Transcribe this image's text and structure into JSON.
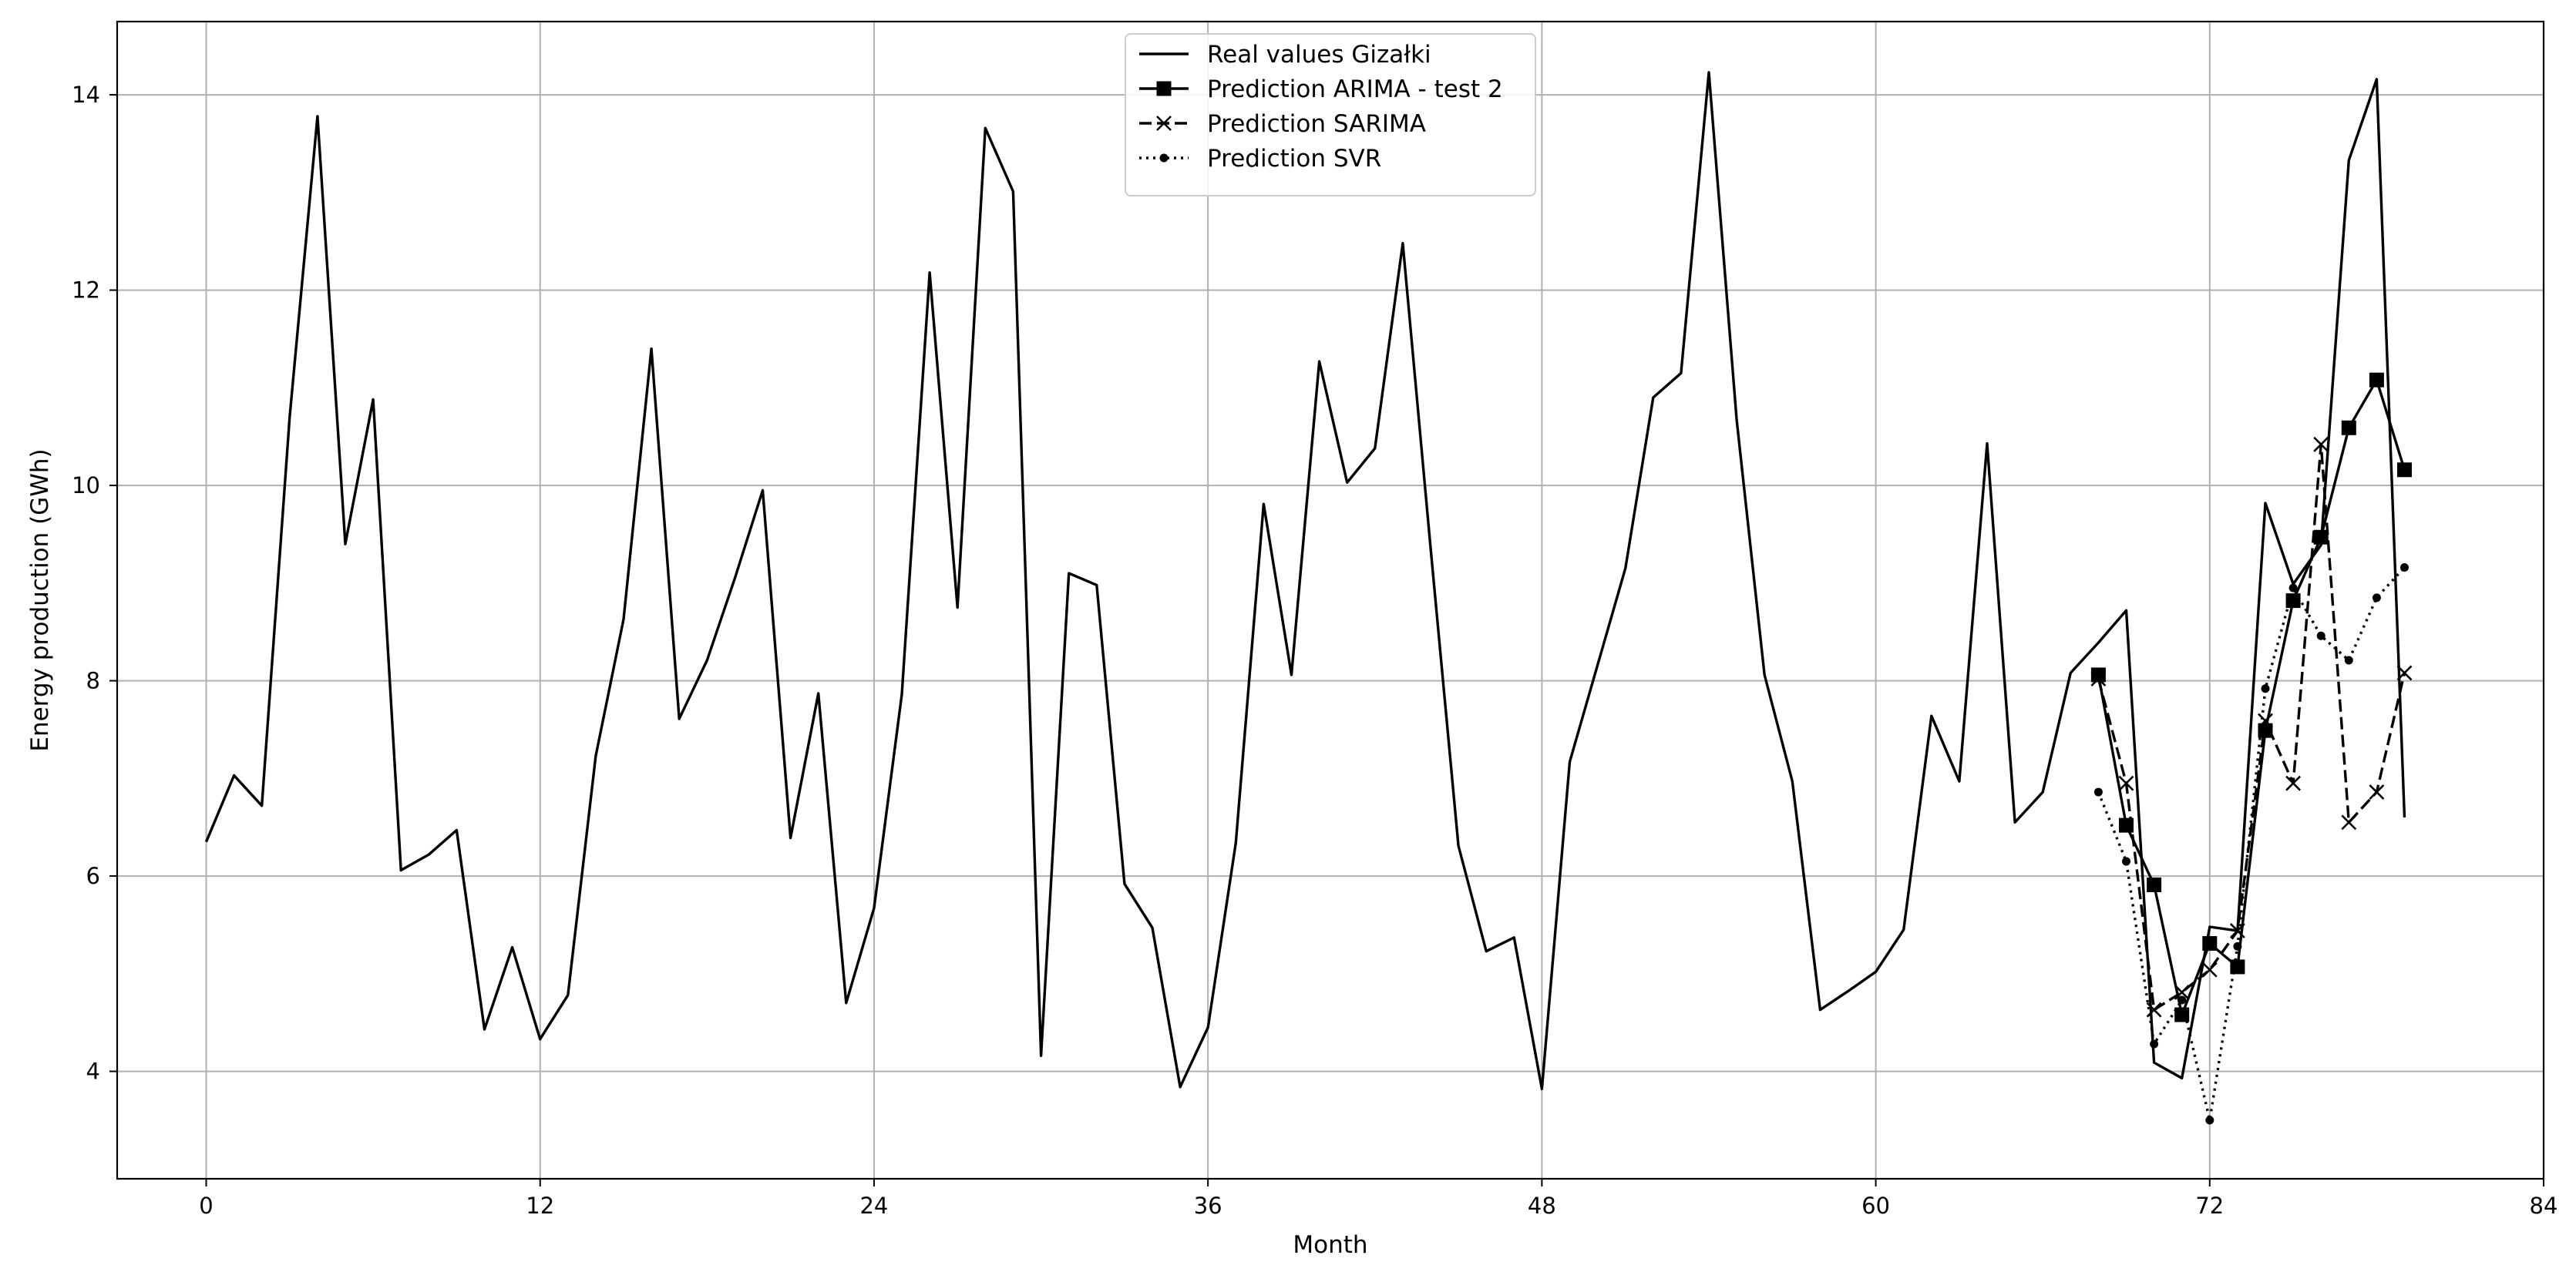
{
  "chart_data": {
    "type": "line",
    "title": "",
    "xlabel": "Month",
    "ylabel": "Energy production (GWh)",
    "xlim": [
      -3.2,
      84
    ],
    "ylim": [
      2.9,
      14.75
    ],
    "x_ticks": [
      0,
      12,
      24,
      36,
      48,
      60,
      72,
      84
    ],
    "y_ticks": [
      4,
      6,
      8,
      10,
      12,
      14
    ],
    "grid": true,
    "legend_position": "top-center",
    "series": [
      {
        "name": "Real values Gizałki",
        "style": "solid",
        "marker": "none",
        "color": "#000000",
        "x": [
          0,
          1,
          2,
          3,
          4,
          5,
          6,
          7,
          8,
          9,
          10,
          11,
          12,
          13,
          14,
          15,
          16,
          17,
          18,
          19,
          20,
          21,
          22,
          23,
          24,
          25,
          26,
          27,
          28,
          29,
          30,
          31,
          32,
          33,
          34,
          35,
          36,
          37,
          38,
          39,
          40,
          41,
          42,
          43,
          44,
          45,
          46,
          47,
          48,
          49,
          50,
          51,
          52,
          53,
          54,
          55,
          56,
          57,
          58,
          59,
          60,
          61,
          62,
          63,
          64,
          65,
          66,
          67,
          68,
          69,
          70,
          71,
          72,
          73,
          74,
          75,
          76,
          77,
          78,
          79
        ],
        "y": [
          6.35,
          7.03,
          6.72,
          10.7,
          13.78,
          9.4,
          10.88,
          6.06,
          6.22,
          6.47,
          4.43,
          5.27,
          4.33,
          4.78,
          7.23,
          8.63,
          11.4,
          7.61,
          8.21,
          9.05,
          9.95,
          6.39,
          7.87,
          4.7,
          5.67,
          7.86,
          12.18,
          8.75,
          13.66,
          13.01,
          4.16,
          9.1,
          8.98,
          5.92,
          5.47,
          3.84,
          4.45,
          6.34,
          9.81,
          8.06,
          11.27,
          10.03,
          10.38,
          12.48,
          9.36,
          6.31,
          5.23,
          5.37,
          3.82,
          7.17,
          8.16,
          9.15,
          10.9,
          11.15,
          14.23,
          10.67,
          8.06,
          6.97,
          4.63,
          4.82,
          5.02,
          5.45,
          7.64,
          6.97,
          10.43,
          6.55,
          6.86,
          8.08,
          8.39,
          8.72,
          4.09,
          3.93,
          5.48,
          5.44,
          9.82,
          8.99,
          9.39,
          13.33,
          14.16,
          6.6
        ]
      },
      {
        "name": "Prediction ARIMA - test 2",
        "style": "solid",
        "marker": "square",
        "color": "#000000",
        "x": [
          68,
          69,
          70,
          71,
          72,
          73,
          74,
          75,
          76,
          77,
          78,
          79
        ],
        "y": [
          8.06,
          6.52,
          5.91,
          4.58,
          5.31,
          5.07,
          7.49,
          8.82,
          9.47,
          10.59,
          11.08,
          10.16
        ]
      },
      {
        "name": "Prediction SARIMA",
        "style": "dashed",
        "marker": "x",
        "color": "#000000",
        "x": [
          68,
          69,
          70,
          71,
          72,
          73,
          74,
          75,
          76,
          77,
          78,
          79
        ],
        "y": [
          8.02,
          6.95,
          4.63,
          4.81,
          5.04,
          5.44,
          7.59,
          6.95,
          10.42,
          6.55,
          6.86,
          8.08
        ]
      },
      {
        "name": "Prediction SVR",
        "style": "dotted",
        "marker": "dot",
        "color": "#000000",
        "x": [
          68,
          69,
          70,
          71,
          72,
          73,
          74,
          75,
          76,
          77,
          78,
          79
        ],
        "y": [
          6.86,
          6.15,
          4.28,
          4.73,
          3.5,
          5.28,
          7.92,
          8.95,
          8.46,
          8.21,
          8.85,
          9.16
        ]
      }
    ]
  }
}
